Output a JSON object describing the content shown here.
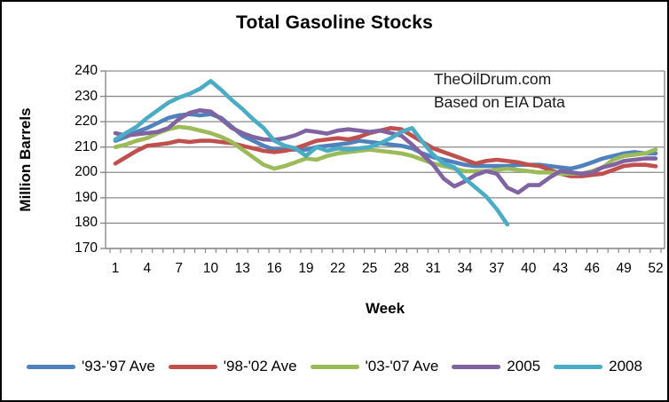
{
  "chart_data": {
    "type": "line",
    "title": "Total Gasoline Stocks",
    "xlabel": "Week",
    "ylabel": "Million Barrels",
    "annotation": [
      "TheOilDrum.com",
      "Based on EIA Data"
    ],
    "ylim": [
      170,
      240
    ],
    "x_range": [
      1,
      52
    ],
    "grid": true,
    "legend_position": "bottom",
    "x_ticks": [
      1,
      4,
      7,
      10,
      13,
      16,
      19,
      22,
      25,
      28,
      31,
      34,
      37,
      40,
      43,
      46,
      49,
      52
    ],
    "y_ticks": [
      240,
      230,
      220,
      210,
      200,
      190,
      180,
      170
    ],
    "axis_color": "#8a8a8a",
    "series": [
      {
        "name": "'93-'97 Ave",
        "color": "#4F81BD",
        "values": [
          212.5,
          214,
          216,
          217.5,
          219.5,
          221.5,
          222.5,
          223,
          222.5,
          223,
          221.5,
          218,
          214.5,
          212.5,
          210.5,
          209,
          209,
          209,
          209,
          210,
          210.5,
          211,
          211.5,
          212.5,
          212,
          211.5,
          211,
          210.5,
          209.5,
          207.5,
          206,
          205,
          204,
          203,
          202.5,
          202.5,
          202.5,
          202.5,
          203,
          203,
          203,
          202.5,
          202,
          201.5,
          202.5,
          204,
          205.5,
          206.5,
          207.5,
          208,
          207.5,
          207.5
        ]
      },
      {
        "name": "'98-'02 Ave",
        "color": "#C0504D",
        "values": [
          203.5,
          206,
          208.5,
          210.5,
          211,
          211.5,
          212.5,
          212,
          212.5,
          212.5,
          212,
          211.5,
          210.5,
          209.5,
          208.5,
          208,
          208.5,
          209.5,
          211,
          212.5,
          213,
          213.5,
          213,
          214,
          215.5,
          216.5,
          217.5,
          217,
          214.5,
          212,
          209.5,
          208,
          206.5,
          205,
          203.5,
          204.5,
          205,
          204.5,
          204,
          203,
          202.5,
          201,
          199.5,
          198.5,
          198.5,
          199,
          199.5,
          201,
          202.5,
          203,
          203,
          202.4
        ]
      },
      {
        "name": "'03-'07 Ave",
        "color": "#9BBB59",
        "values": [
          210,
          211,
          212.5,
          213.5,
          215.5,
          217,
          218,
          217.5,
          216.5,
          215.5,
          214,
          212,
          209,
          206,
          203,
          201.5,
          202.5,
          204,
          205.5,
          205,
          206.5,
          207.5,
          208,
          208.5,
          209,
          208.5,
          208,
          207.5,
          206.5,
          205,
          203.5,
          202.5,
          201.5,
          200.5,
          200.5,
          200.5,
          201,
          201.5,
          201,
          200.5,
          200,
          200,
          199.5,
          199.5,
          199.5,
          200.5,
          202,
          205,
          206.5,
          207,
          207.5,
          209
        ]
      },
      {
        "name": "2005",
        "color": "#8064A2",
        "values": [
          215.5,
          214.5,
          215,
          215.5,
          216,
          217.5,
          221,
          223.5,
          224.5,
          224,
          221,
          217.5,
          215.5,
          214,
          213,
          212.8,
          213.5,
          214.7,
          216.5,
          216,
          215.3,
          216.5,
          217,
          216.5,
          216,
          216.5,
          215.5,
          214.5,
          211,
          207,
          203,
          197.5,
          194.5,
          196.5,
          199,
          200.5,
          199.5,
          194,
          192,
          195,
          195,
          198,
          200.5,
          200,
          199.5,
          200,
          202,
          203,
          204.5,
          205,
          205.5,
          205.5
        ]
      },
      {
        "name": "2008",
        "color": "#4BACC6",
        "values": [
          213,
          215.5,
          218,
          221.5,
          224.5,
          227.5,
          229.5,
          231,
          233,
          236,
          232.5,
          228.5,
          225,
          221,
          217.5,
          212.5,
          210.5,
          209.5,
          206.5,
          210,
          208.5,
          209.5,
          209,
          209.5,
          210,
          211.5,
          213.5,
          216,
          217.5,
          212,
          207,
          203.5,
          202,
          197.5,
          194,
          190.5,
          185.5,
          179.5
        ]
      }
    ]
  }
}
